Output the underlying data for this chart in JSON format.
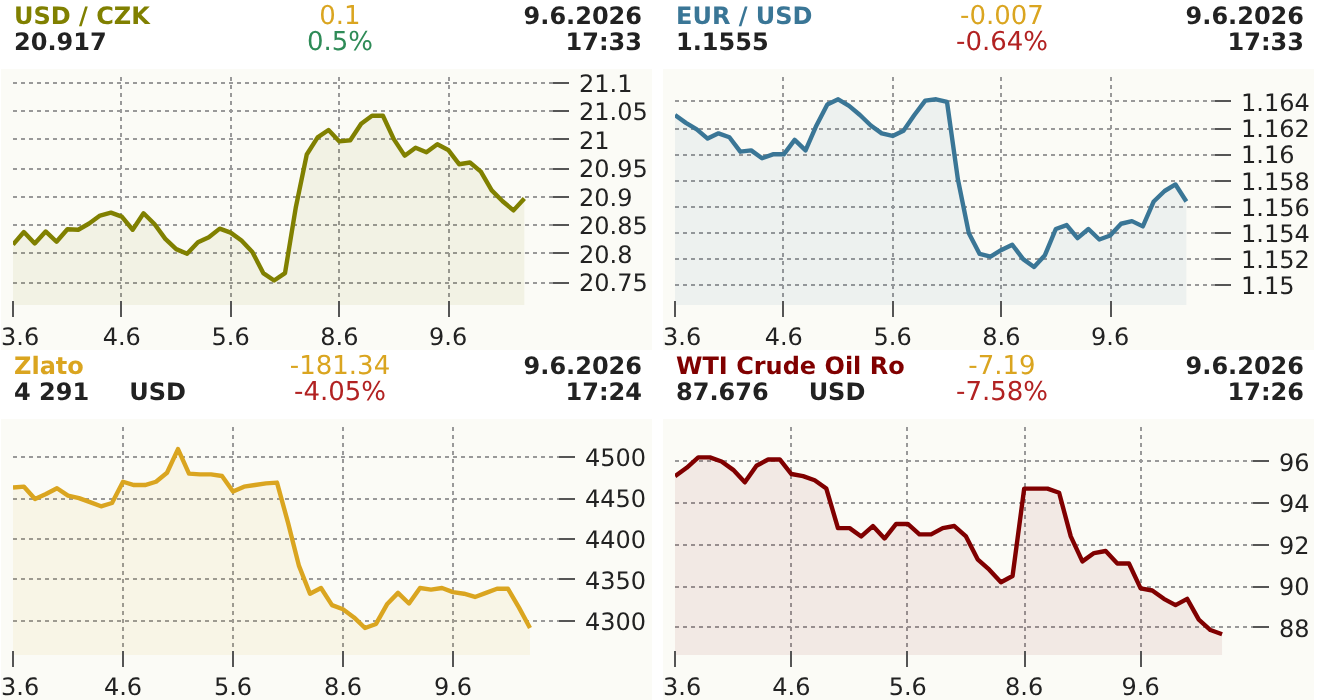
{
  "chart_data": [
    {
      "type": "area",
      "title": "USD / CZK",
      "subtitle": "20.917",
      "annotations": [
        "0.1",
        "0.5%",
        "9.6.2026",
        "17:33"
      ],
      "grid": true,
      "categories": [
        "3.6",
        null,
        null,
        null,
        null,
        null,
        null,
        null,
        null,
        null,
        "4.6",
        null,
        null,
        null,
        null,
        null,
        null,
        null,
        null,
        null,
        "5.6",
        null,
        null,
        null,
        null,
        null,
        null,
        null,
        null,
        null,
        "8.6",
        null,
        null,
        null,
        null,
        null,
        null,
        null,
        null,
        null,
        "9.6",
        null,
        null,
        null,
        null,
        null,
        null,
        null,
        null,
        null
      ],
      "series": [
        {
          "color": "#808000",
          "values": [
            20.816,
            20.838,
            20.818,
            20.839,
            20.821,
            20.843,
            20.842,
            20.853,
            20.867,
            20.872,
            20.865,
            20.842,
            20.871,
            20.852,
            20.826,
            20.808,
            20.8,
            20.82,
            20.829,
            20.844,
            20.837,
            20.823,
            20.803,
            20.766,
            20.753,
            20.766,
            20.882,
            20.974,
            21.004,
            21.017,
            20.997,
            20.999,
            21.028,
            21.042,
            21.042,
            21.001,
            20.972,
            20.986,
            20.978,
            20.992,
            20.982,
            20.957,
            20.96,
            20.944,
            20.911,
            20.892,
            20.876,
            20.897,
            null,
            null
          ]
        }
      ],
      "ylim": [
        20.71,
        21.11
      ],
      "yticks": [
        20.75,
        20.8,
        20.85,
        20.9,
        20.95,
        21,
        21.05,
        21.1
      ]
    },
    {
      "type": "area",
      "title": "EUR / USD",
      "subtitle": "1.1555",
      "annotations": [
        "-0.007",
        "-0.64%",
        "9.6.2026",
        "17:33"
      ],
      "grid": true,
      "categories": [
        "3.6",
        null,
        null,
        null,
        null,
        null,
        null,
        null,
        null,
        null,
        "4.6",
        null,
        null,
        null,
        null,
        null,
        null,
        null,
        null,
        null,
        "5.6",
        null,
        null,
        null,
        null,
        null,
        null,
        null,
        null,
        null,
        "8.6",
        null,
        null,
        null,
        null,
        null,
        null,
        null,
        null,
        null,
        "9.6",
        null,
        null,
        null,
        null,
        null,
        null,
        null,
        null,
        null
      ],
      "series": [
        {
          "color": "#3a7696",
          "values": [
            1.163,
            1.1624,
            1.1619,
            1.1612,
            1.1616,
            1.1613,
            1.1602,
            1.1603,
            1.1597,
            1.16,
            1.16,
            1.1611,
            1.1603,
            1.1622,
            1.1638,
            1.1642,
            1.1637,
            1.163,
            1.1622,
            1.1616,
            1.1614,
            1.1618,
            1.163,
            1.1641,
            1.1642,
            1.164,
            1.1581,
            1.154,
            1.1524,
            1.1522,
            1.1527,
            1.1531,
            1.152,
            1.1514,
            1.1523,
            1.1543,
            1.1546,
            1.1536,
            1.1543,
            1.1535,
            1.1538,
            1.1547,
            1.1549,
            1.1545,
            1.1564,
            1.1572,
            1.1577,
            1.1564,
            null,
            null
          ]
        }
      ],
      "ylim": [
        1.1485,
        1.1659
      ],
      "yticks": [
        1.15,
        1.152,
        1.154,
        1.156,
        1.158,
        1.16,
        1.162,
        1.164
      ]
    },
    {
      "type": "area",
      "title": "Zlato",
      "subtitle": "4 291",
      "annotations": [
        "-181.34",
        "-4.05%",
        "9.6.2026",
        "17:24",
        "USD"
      ],
      "grid": true,
      "categories": [
        "3.6",
        null,
        null,
        null,
        null,
        null,
        null,
        null,
        null,
        null,
        "4.6",
        null,
        null,
        null,
        null,
        null,
        null,
        null,
        null,
        null,
        "5.6",
        null,
        null,
        null,
        null,
        null,
        null,
        null,
        null,
        null,
        "8.6",
        null,
        null,
        null,
        null,
        null,
        null,
        null,
        null,
        null,
        "9.6",
        null,
        null,
        null,
        null,
        null,
        null,
        null,
        null,
        null
      ],
      "series": [
        {
          "color": "#daa520",
          "values": [
            4463,
            4464,
            4449,
            4455,
            4462,
            4453,
            4450,
            4445,
            4440,
            4444,
            4470,
            4466,
            4466,
            4470,
            4481,
            4510,
            4480,
            4479,
            4479,
            4477,
            4458,
            4464,
            4466,
            4468,
            4469,
            4420,
            4367,
            4333,
            4340,
            4319,
            4314,
            4304,
            4291,
            4296,
            4320,
            4334,
            4321,
            4340,
            4338,
            4340,
            4335,
            4333,
            4329,
            4334,
            4339,
            4339,
            4316,
            4291,
            null,
            null
          ]
        }
      ],
      "ylim": [
        4258,
        4537
      ],
      "yticks": [
        4300,
        4350,
        4400,
        4450,
        4500
      ]
    },
    {
      "type": "area",
      "title": "WTI Crude Oil Ro",
      "subtitle": "87.676",
      "annotations": [
        "-7.19",
        "-7.58%",
        "9.6.2026",
        "17:26",
        "USD"
      ],
      "grid": true,
      "categories": [
        "3.6",
        null,
        null,
        null,
        null,
        null,
        null,
        null,
        null,
        null,
        "4.6",
        null,
        null,
        null,
        null,
        null,
        null,
        null,
        null,
        null,
        "5.6",
        null,
        null,
        null,
        null,
        null,
        null,
        null,
        null,
        null,
        "8.6",
        null,
        null,
        null,
        null,
        null,
        null,
        null,
        null,
        null,
        "9.6",
        null,
        null,
        null,
        null,
        null,
        null,
        null,
        null,
        null
      ],
      "series": [
        {
          "color": "#800000",
          "values": [
            95.3,
            95.7,
            96.2,
            96.2,
            96.0,
            95.6,
            95.0,
            95.8,
            96.1,
            96.1,
            95.4,
            95.3,
            95.1,
            94.7,
            92.8,
            92.8,
            92.4,
            92.9,
            92.3,
            93.0,
            93.0,
            92.5,
            92.5,
            92.8,
            92.9,
            92.4,
            91.3,
            90.8,
            90.2,
            90.5,
            94.7,
            94.7,
            94.7,
            94.5,
            92.4,
            91.2,
            91.6,
            91.7,
            91.1,
            91.1,
            89.9,
            89.8,
            89.4,
            89.1,
            89.4,
            88.4,
            87.9,
            87.7,
            null,
            null
          ]
        }
      ],
      "ylim": [
        86.7,
        97.66
      ],
      "yticks": [
        88,
        90,
        92,
        94,
        96
      ]
    }
  ]
}
